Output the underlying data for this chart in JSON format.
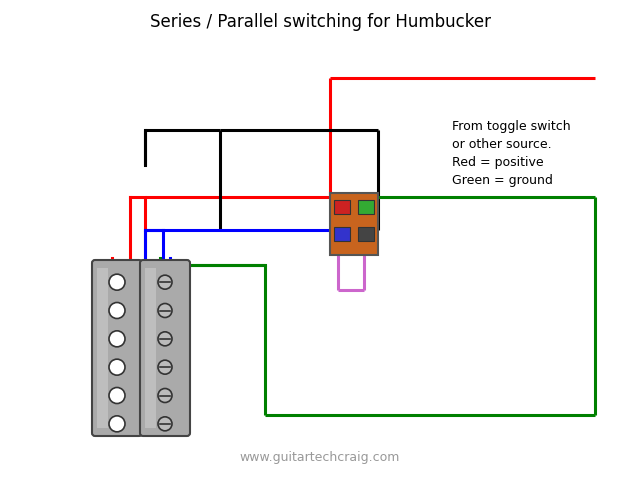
{
  "title": "Series / Parallel switching for Humbucker",
  "watermark": "www.guitartechcraig.com",
  "bg_color": "#ffffff",
  "title_fontsize": 12,
  "watermark_fontsize": 9,
  "annotation_text": "From toggle switch\nor other source.\nRed = positive\nGreen = ground",
  "switch_color": "#c8641e",
  "lw": 2.2
}
